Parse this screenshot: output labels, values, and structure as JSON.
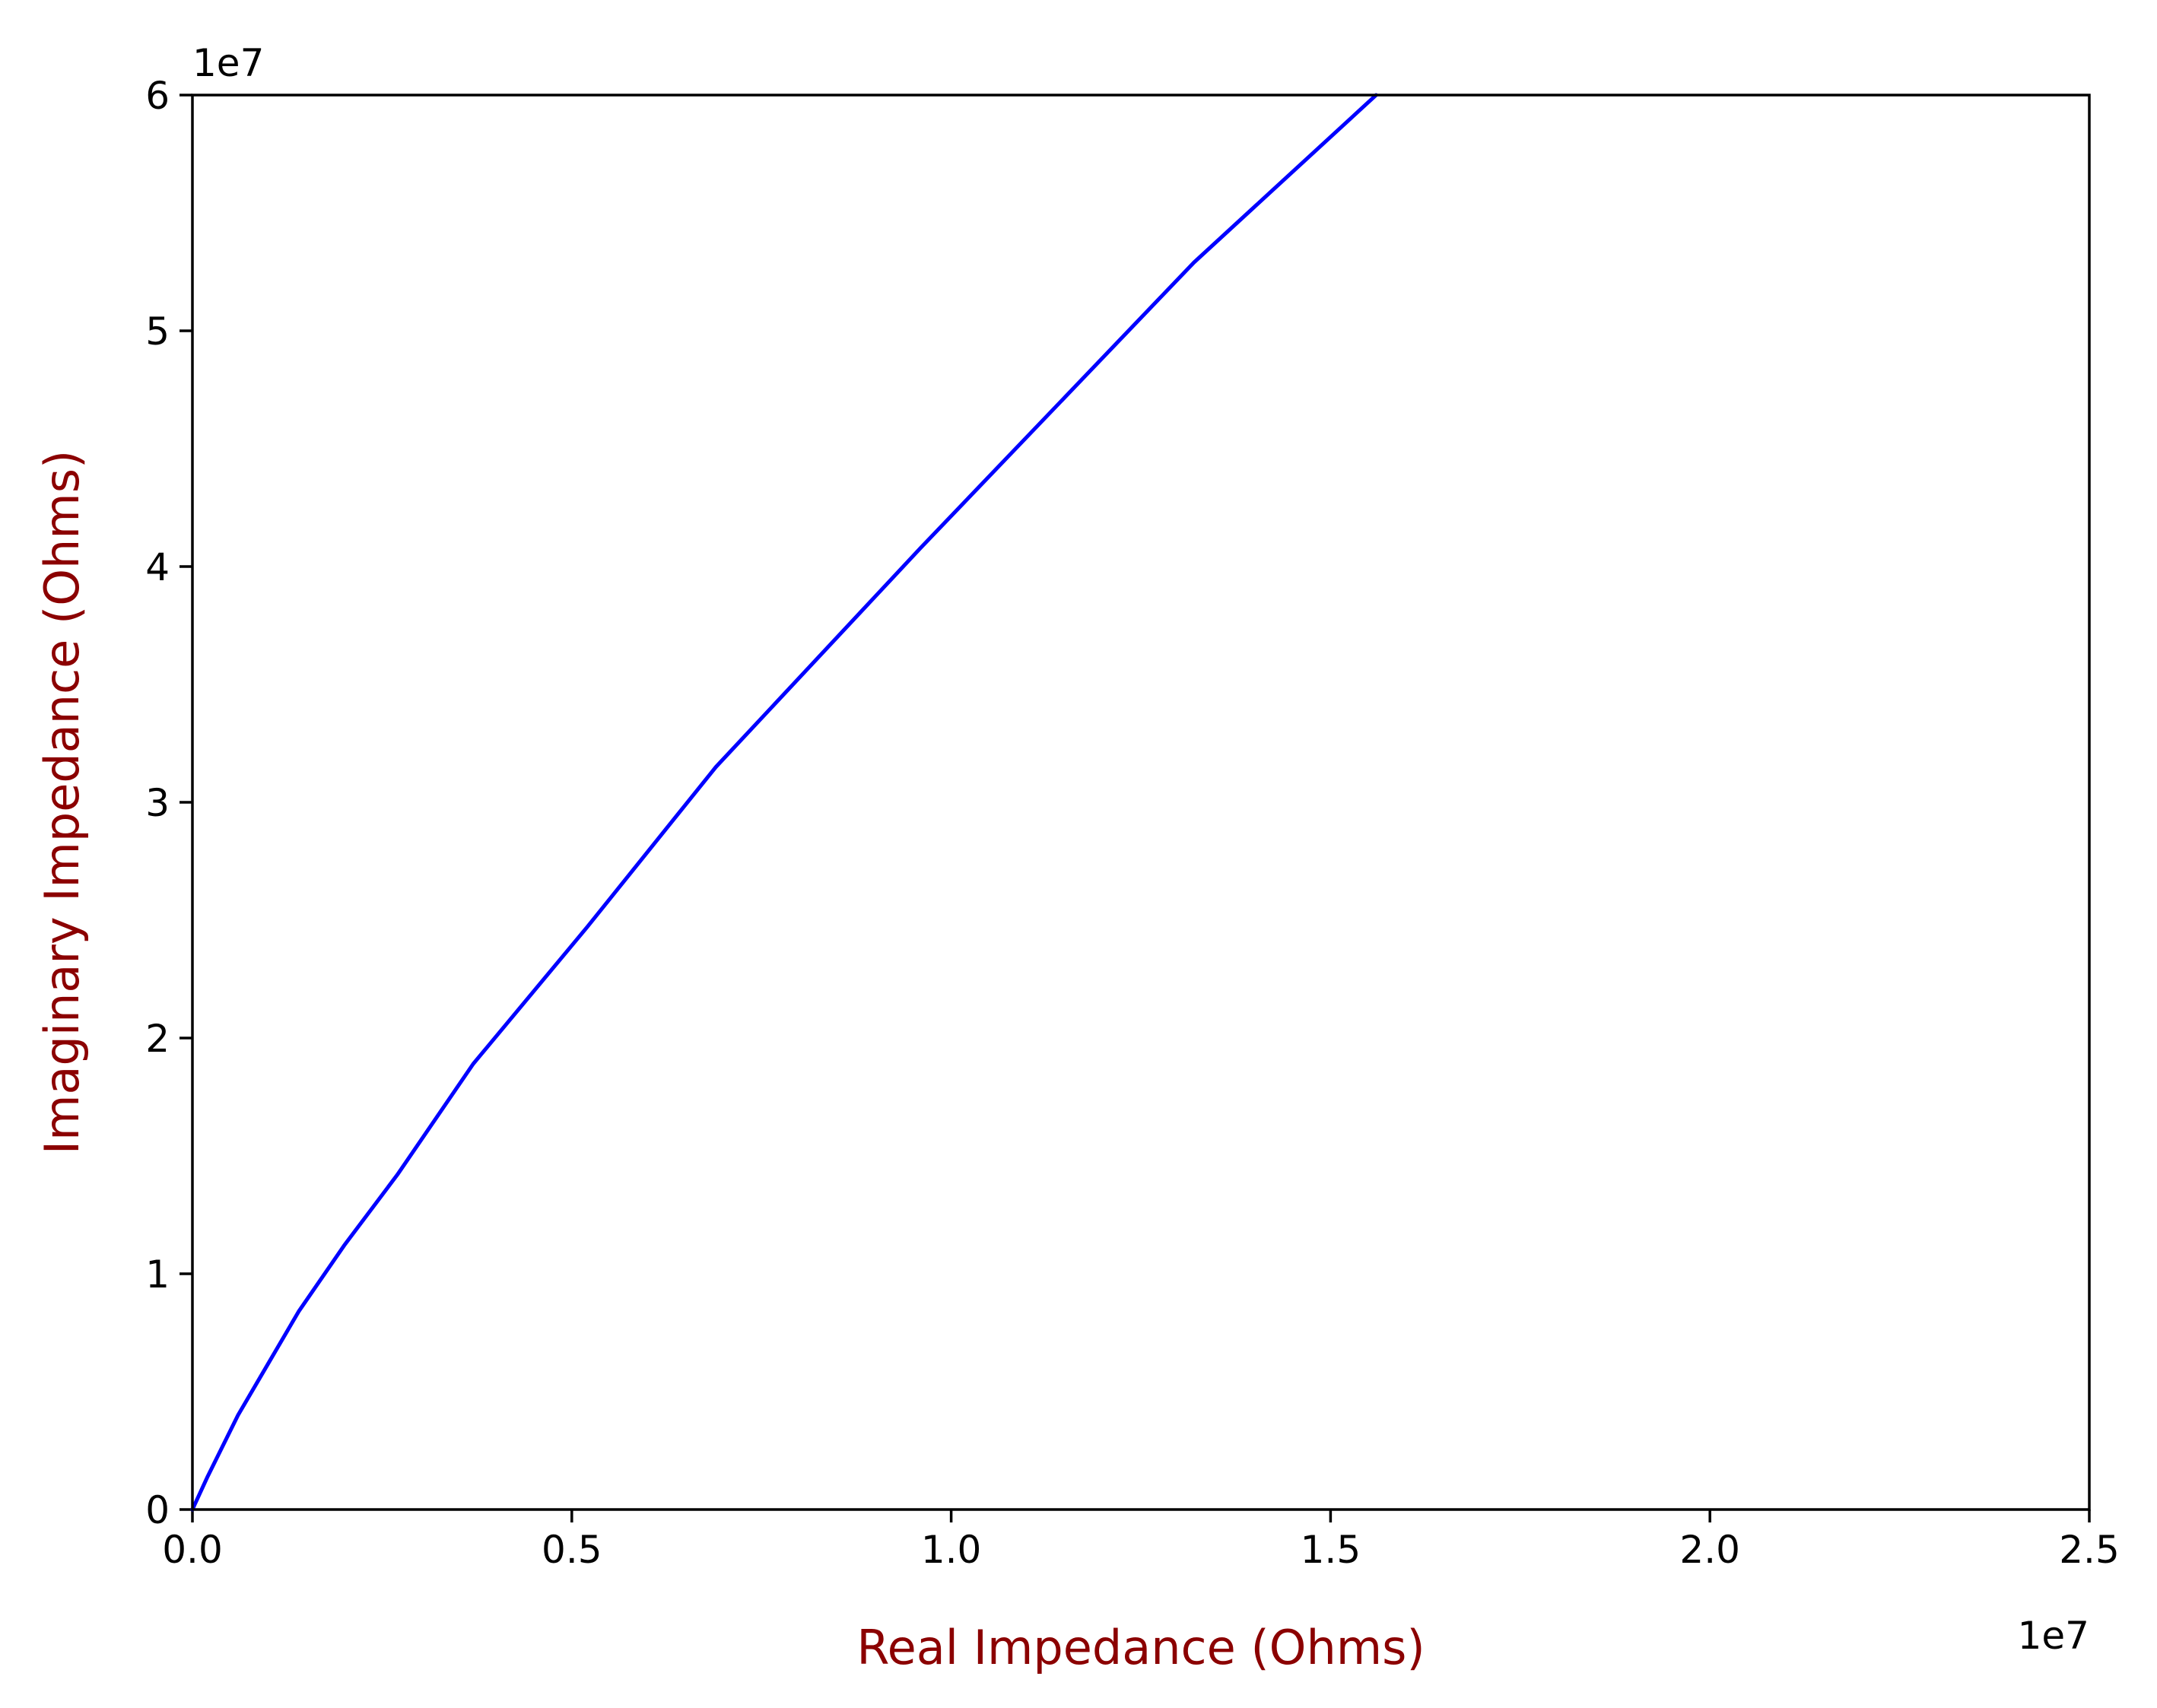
{
  "chart_data": {
    "type": "line",
    "xlabel": "Real Impedance (Ohms)",
    "ylabel": "Imaginary Impedance (Ohms)",
    "label_color": "#8b0000",
    "line_color": "#0000ff",
    "x_offset_label": "1e7",
    "y_offset_label": "1e7",
    "xlim": [
      0,
      2.5
    ],
    "ylim": [
      0,
      6
    ],
    "x_ticks": [
      0.0,
      0.5,
      1.0,
      1.5,
      2.0,
      2.5
    ],
    "x_tick_labels": [
      "0.0",
      "0.5",
      "1.0",
      "1.5",
      "2.0",
      "2.5"
    ],
    "y_ticks": [
      0,
      1,
      2,
      3,
      4,
      5,
      6
    ],
    "y_tick_labels": [
      "0",
      "1",
      "2",
      "3",
      "4",
      "5",
      "6"
    ],
    "grid": false,
    "legend": "none",
    "series": [
      {
        "x": [
          0.0,
          0.02,
          0.06,
          0.1,
          0.14,
          0.2,
          0.27,
          0.37,
          0.52,
          0.69,
          0.96,
          1.32,
          1.56
        ],
        "y": [
          0.0,
          0.14,
          0.4,
          0.62,
          0.84,
          1.12,
          1.42,
          1.89,
          2.47,
          3.15,
          4.08,
          5.29,
          6.0
        ]
      }
    ]
  }
}
